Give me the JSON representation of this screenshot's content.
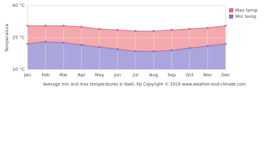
{
  "chart_data": {
    "type": "area",
    "categories": [
      "Jan",
      "Feb",
      "Mar",
      "Apr",
      "May",
      "Jun",
      "Jul",
      "Aug",
      "Sep",
      "Oct",
      "Nov",
      "Dec"
    ],
    "series": [
      {
        "name": "Max temp",
        "color": "#e4627a",
        "fill": "#f4a9ae",
        "values": [
          30.5,
          30.5,
          30.5,
          30,
          29,
          28.5,
          28,
          28,
          28.5,
          29,
          29.5,
          30.5
        ]
      },
      {
        "name": "Min temp",
        "color": "#7d77c9",
        "fill": "#aaa5dc",
        "values": [
          22,
          23,
          22.5,
          21.5,
          20.5,
          19.5,
          18.5,
          18.5,
          19,
          20,
          21,
          22
        ]
      }
    ],
    "ylim": [
      10,
      40
    ],
    "yticks": [
      {
        "value": 10,
        "label": "10 °C"
      },
      {
        "value": 25,
        "label": "25 °C"
      },
      {
        "value": 40,
        "label": "40 °C"
      }
    ],
    "y_label": "Temperature",
    "grid": true,
    "legend": "top-right",
    "caption": "Average min and max temperatures in Nadi, Fiji   Copyright © 2019 www.weather-and-climate.com"
  }
}
